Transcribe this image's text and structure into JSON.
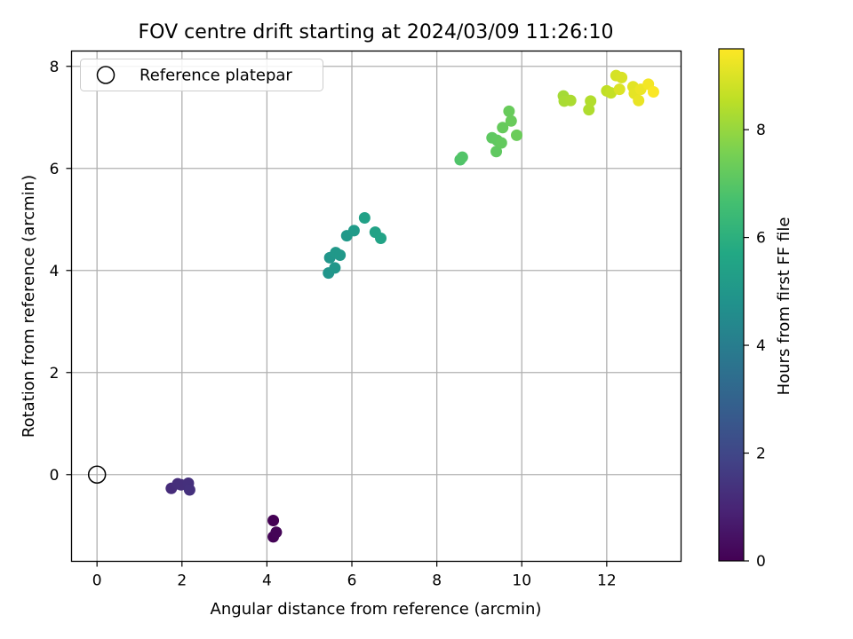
{
  "chart_data": {
    "type": "scatter",
    "title": "FOV centre drift starting at 2024/03/09 11:26:10",
    "xlabel": "Angular distance from reference (arcmin)",
    "ylabel": "Rotation from reference (arcmin)",
    "xlim": [
      -0.6,
      13.75
    ],
    "ylim": [
      -1.7,
      8.3
    ],
    "xticks": [
      0,
      2,
      4,
      6,
      8,
      10,
      12
    ],
    "yticks": [
      0,
      2,
      4,
      6,
      8
    ],
    "grid": true,
    "legend": {
      "placement": "top-left",
      "entries": [
        "Reference platepar"
      ]
    },
    "reference_point": {
      "x": 0,
      "y": 0,
      "label": "Reference platepar"
    },
    "colorbar": {
      "label": "Hours from first FF file",
      "colormap": "viridis",
      "range": [
        0,
        9.5
      ],
      "ticks": [
        0,
        2,
        4,
        6,
        8
      ]
    },
    "points": [
      {
        "x": 4.15,
        "y": -0.9,
        "h": 0.0
      },
      {
        "x": 4.15,
        "y": -1.22,
        "h": 0.05
      },
      {
        "x": 4.22,
        "y": -1.13,
        "h": 0.1
      },
      {
        "x": 1.75,
        "y": -0.27,
        "h": 1.2
      },
      {
        "x": 1.9,
        "y": -0.18,
        "h": 1.25
      },
      {
        "x": 1.98,
        "y": -0.2,
        "h": 1.28
      },
      {
        "x": 2.15,
        "y": -0.17,
        "h": 1.32
      },
      {
        "x": 2.18,
        "y": -0.3,
        "h": 1.35
      },
      {
        "x": 5.45,
        "y": 3.95,
        "h": 4.9
      },
      {
        "x": 5.48,
        "y": 4.25,
        "h": 4.95
      },
      {
        "x": 5.6,
        "y": 4.05,
        "h": 5.0
      },
      {
        "x": 5.62,
        "y": 4.35,
        "h": 5.05
      },
      {
        "x": 5.72,
        "y": 4.3,
        "h": 5.05
      },
      {
        "x": 5.88,
        "y": 4.68,
        "h": 5.1
      },
      {
        "x": 6.05,
        "y": 4.78,
        "h": 5.15
      },
      {
        "x": 6.3,
        "y": 5.03,
        "h": 5.4
      },
      {
        "x": 6.55,
        "y": 4.75,
        "h": 5.45
      },
      {
        "x": 6.68,
        "y": 4.63,
        "h": 5.5
      },
      {
        "x": 8.55,
        "y": 6.17,
        "h": 6.85
      },
      {
        "x": 8.6,
        "y": 6.22,
        "h": 6.9
      },
      {
        "x": 9.3,
        "y": 6.6,
        "h": 7.1
      },
      {
        "x": 9.4,
        "y": 6.33,
        "h": 7.15
      },
      {
        "x": 9.42,
        "y": 6.55,
        "h": 7.15
      },
      {
        "x": 9.52,
        "y": 6.5,
        "h": 7.2
      },
      {
        "x": 9.55,
        "y": 6.8,
        "h": 7.25
      },
      {
        "x": 9.7,
        "y": 7.12,
        "h": 7.28
      },
      {
        "x": 9.75,
        "y": 6.93,
        "h": 7.3
      },
      {
        "x": 9.88,
        "y": 6.65,
        "h": 7.33
      },
      {
        "x": 10.98,
        "y": 7.42,
        "h": 8.2
      },
      {
        "x": 11.0,
        "y": 7.32,
        "h": 8.25
      },
      {
        "x": 11.15,
        "y": 7.33,
        "h": 8.3
      },
      {
        "x": 11.58,
        "y": 7.15,
        "h": 8.35
      },
      {
        "x": 11.62,
        "y": 7.32,
        "h": 8.4
      },
      {
        "x": 12.0,
        "y": 7.52,
        "h": 8.6
      },
      {
        "x": 12.1,
        "y": 7.48,
        "h": 8.65
      },
      {
        "x": 12.22,
        "y": 7.82,
        "h": 8.9
      },
      {
        "x": 12.35,
        "y": 7.78,
        "h": 8.95
      },
      {
        "x": 12.3,
        "y": 7.55,
        "h": 9.0
      },
      {
        "x": 12.62,
        "y": 7.6,
        "h": 9.1
      },
      {
        "x": 12.65,
        "y": 7.47,
        "h": 9.15
      },
      {
        "x": 12.75,
        "y": 7.33,
        "h": 9.2
      },
      {
        "x": 12.8,
        "y": 7.55,
        "h": 9.25
      },
      {
        "x": 12.98,
        "y": 7.65,
        "h": 9.35
      },
      {
        "x": 13.1,
        "y": 7.5,
        "h": 9.45
      }
    ]
  }
}
